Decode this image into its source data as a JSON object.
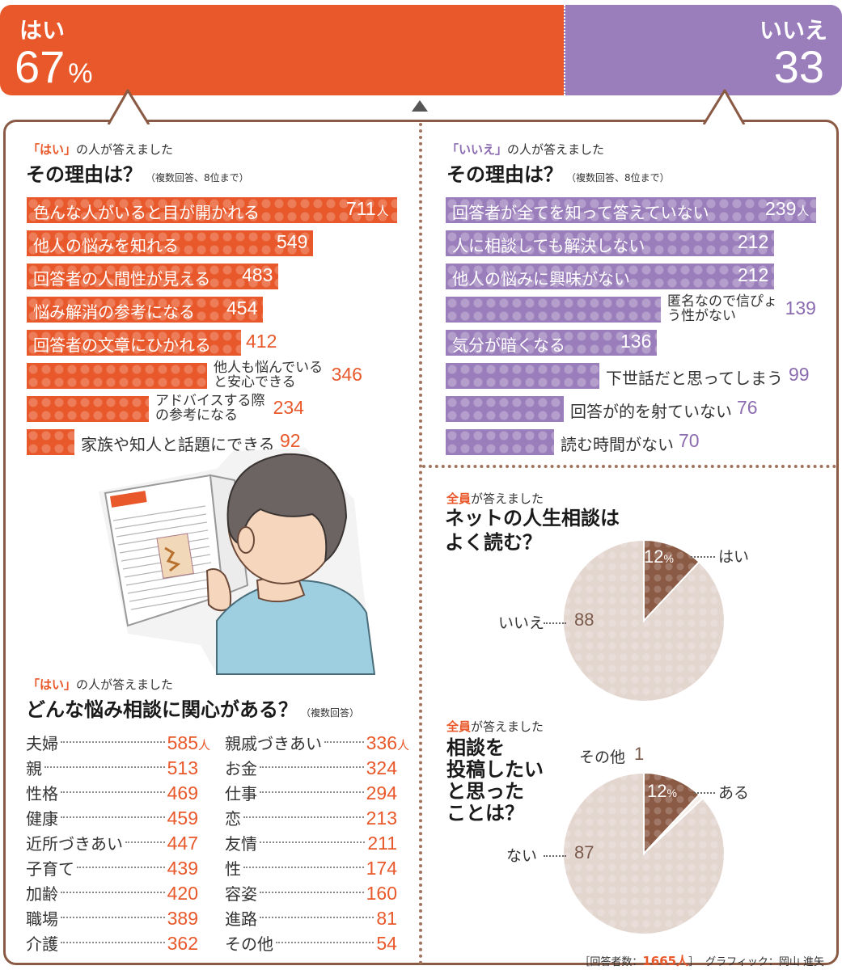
{
  "top": {
    "yes_label": "はい",
    "yes_value": "67",
    "yes_unit": "%",
    "yes_pct": 67,
    "no_label": "いいえ",
    "no_value": "33",
    "no_pct": 33
  },
  "colors": {
    "yes": "#e8582a",
    "no": "#9a7dbb",
    "pie_dark": "#8b5a45",
    "pie_light": "#e3d6cf"
  },
  "yes_reasons": {
    "kicker_q": "「はい」",
    "kicker_rest": "の人が答えました",
    "title": "その理由は？",
    "note": "（複数回答、8位まで）"
  },
  "no_reasons": {
    "kicker_q": "「いいえ」",
    "kicker_rest": "の人が答えました",
    "title": "その理由は？",
    "note": "（複数回答、8位まで）"
  },
  "interest": {
    "kicker_q": "「はい」",
    "kicker_rest": "の人が答えました",
    "title": "どんな悩み相談に関心がある？",
    "note": "（複数回答）"
  },
  "pie1": {
    "kicker_all": "全員",
    "kicker_rest": "が答えました",
    "title_line1": "ネットの人生相談は",
    "title_line2": "よく読む？",
    "yes_label": "はい",
    "yes_value": "12",
    "yes_unit": "%",
    "no_label": "いいえ",
    "no_value": "88"
  },
  "pie2": {
    "kicker_all": "全員",
    "kicker_rest": "が答えました",
    "title_lines": [
      "相談を",
      "投稿したい",
      "と思った",
      "ことは？"
    ],
    "yes_label": "ある",
    "yes_value": "12",
    "yes_unit": "%",
    "no_label": "ない",
    "no_value": "87",
    "other_label": "その他",
    "other_value": "1"
  },
  "footer": {
    "prefix": "［回答者数：",
    "count": "1665人",
    "suffix": "］",
    "credit": "グラフィック：岡山 進矢"
  },
  "chart_data": [
    {
      "type": "bar",
      "title": "その理由は？",
      "categories": [
        "色んな人がいると目が開かれる",
        "他人の悩みを知れる",
        "回答者の人間性が見える",
        "悩み解消の参考になる",
        "回答者の文章にひかれる",
        "他人も悩んでいると安心できる",
        "アドバイスする際の参考になる",
        "家族や知人と話題にできる"
      ],
      "values": [
        711,
        549,
        483,
        454,
        412,
        346,
        234,
        92
      ],
      "value_labels": [
        "711",
        "549",
        "483",
        "454",
        "412",
        "346",
        "234",
        "92"
      ],
      "unit": "人"
    },
    {
      "type": "bar",
      "title": "その理由は？",
      "categories": [
        "回答者が全てを知って答えていない",
        "人に相談しても解決しない",
        "他人の悩みに興味がない",
        "匿名なので信ぴょう性がない",
        "気分が暗くなる",
        "下世話だと思ってしまう",
        "回答が的を射ていない",
        "読む時間がない"
      ],
      "values": [
        239,
        212,
        212,
        139,
        136,
        99,
        76,
        70
      ],
      "value_labels": [
        "239",
        "212",
        "212",
        "139",
        "136",
        "99",
        "76",
        "70"
      ],
      "unit": "人"
    },
    {
      "type": "table",
      "title": "どんな悩み相談に関心がある？",
      "categories": [
        "夫婦",
        "親",
        "性格",
        "健康",
        "近所づきあい",
        "子育て",
        "加齢",
        "職場",
        "介護",
        "親戚づきあい",
        "お金",
        "仕事",
        "恋",
        "友情",
        "性",
        "容姿",
        "進路",
        "その他"
      ],
      "values": [
        585,
        513,
        469,
        459,
        447,
        439,
        420,
        389,
        362,
        336,
        324,
        294,
        213,
        211,
        174,
        160,
        81,
        54
      ],
      "value_labels": [
        "585",
        "513",
        "469",
        "459",
        "447",
        "439",
        "420",
        "389",
        "362",
        "336",
        "324",
        "294",
        "213",
        "211",
        "174",
        "160",
        "81",
        "54"
      ],
      "unit": "人"
    },
    {
      "type": "pie",
      "title": "ネットの人生相談はよく読む？",
      "categories": [
        "はい",
        "いいえ"
      ],
      "values": [
        12,
        88
      ]
    },
    {
      "type": "pie",
      "title": "相談を投稿したいと思ったことは？",
      "categories": [
        "ある",
        "その他",
        "ない"
      ],
      "values": [
        12,
        1,
        87
      ]
    }
  ]
}
